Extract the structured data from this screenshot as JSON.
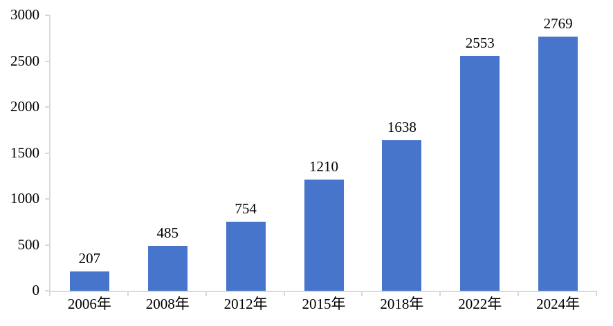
{
  "chart_data": {
    "type": "bar",
    "categories": [
      "2006年",
      "2008年",
      "2012年",
      "2015年",
      "2018年",
      "2022年",
      "2024年"
    ],
    "values": [
      207,
      485,
      754,
      1210,
      1638,
      2553,
      2769
    ],
    "title": "",
    "xlabel": "",
    "ylabel": "",
    "ylim": [
      0,
      3000
    ],
    "y_ticks": [
      0,
      500,
      1000,
      1500,
      2000,
      2500,
      3000
    ],
    "grid": false,
    "legend": false,
    "bar_color": "#4775CB",
    "axis_color": "#D9D9D9",
    "text_color": "#000000",
    "background_color": "#FFFFFF"
  }
}
